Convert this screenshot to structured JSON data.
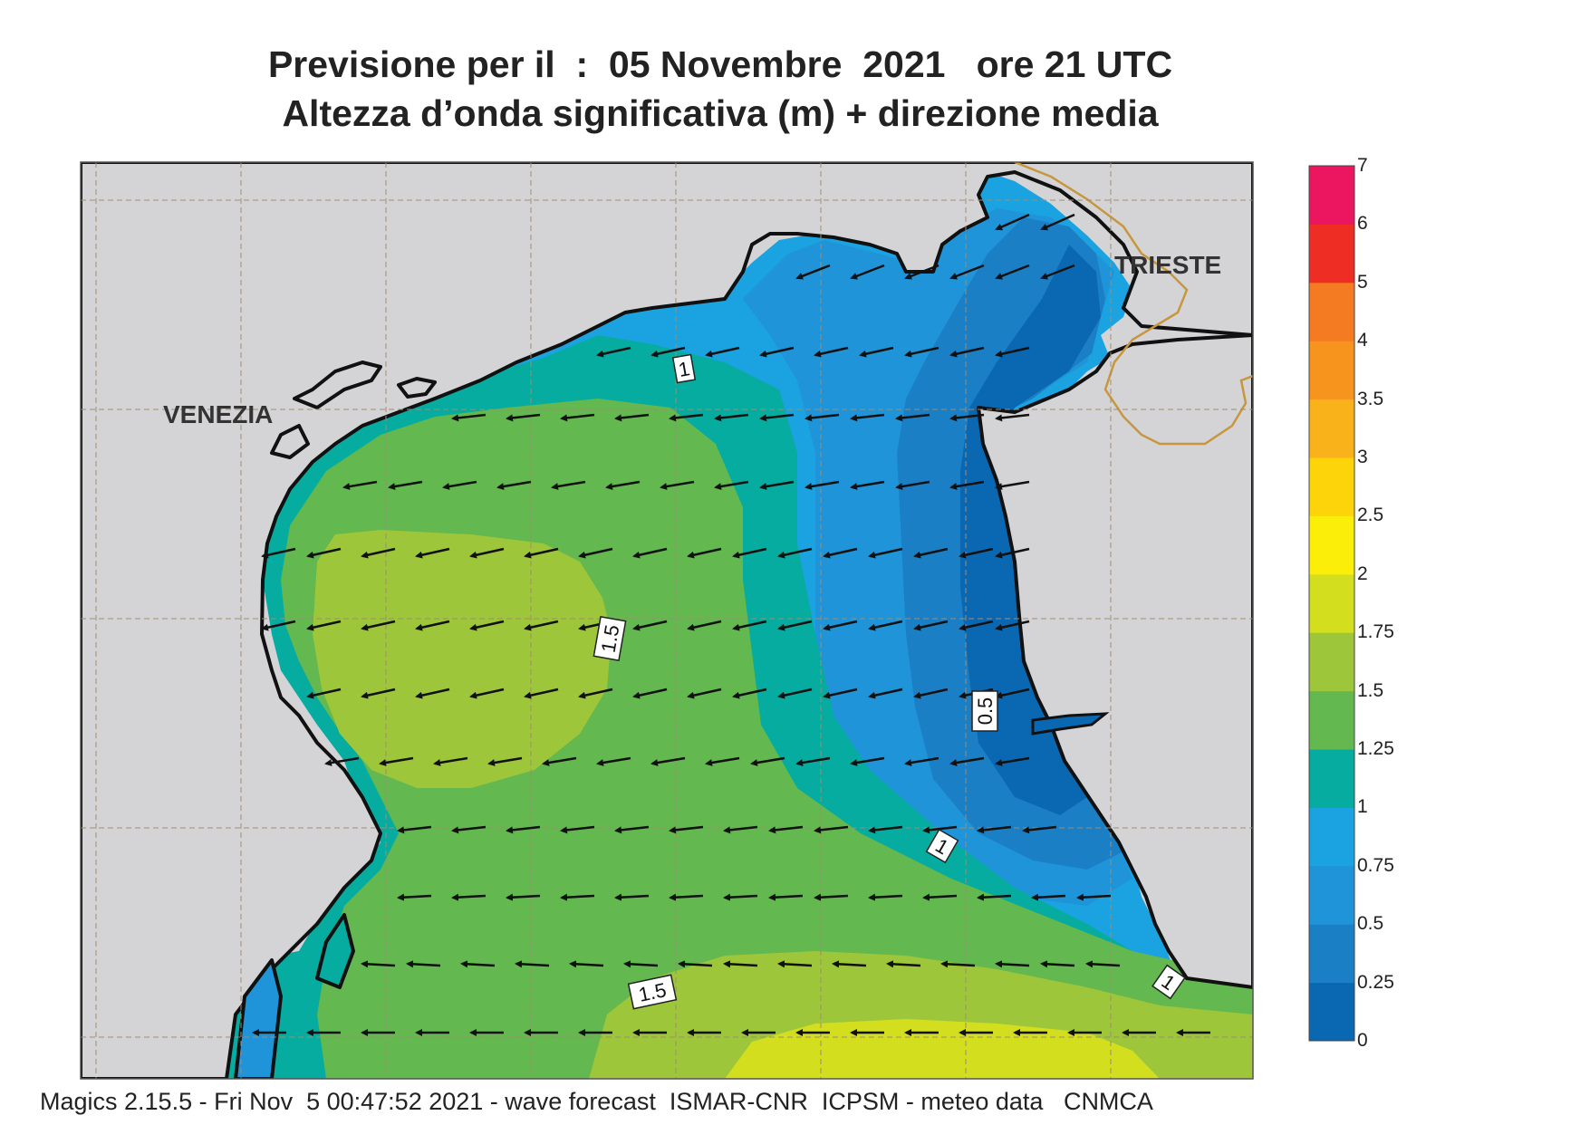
{
  "title": {
    "line1": "Previsione per il  :  05 Novembre  2021   ore 21 UTC",
    "line2": "Altezza d’onda significativa (m) + direzione media"
  },
  "footer": "Magics 2.15.5 - Fri Nov  5 00:47:52 2021 - wave forecast  ISMAR-CNR  ICPSM - meteo data   CNMCA",
  "cities": [
    {
      "name": "VENEZIA"
    },
    {
      "name": "TRIESTE"
    }
  ],
  "contour_labels": [
    "1",
    "1.5",
    "0.5",
    "1",
    "1.5",
    "1"
  ],
  "color_scale": {
    "levels": [
      "0",
      "0.25",
      "0.5",
      "0.75",
      "1",
      "1.25",
      "1.5",
      "1.75",
      "2",
      "2.5",
      "3",
      "3.5",
      "4",
      "5",
      "6",
      "7"
    ],
    "colors": [
      "#0a68b3",
      "#1b7fc6",
      "#1f94d8",
      "#1aa3e0",
      "#06ac9f",
      "#63b84f",
      "#9dc63a",
      "#d3de1f",
      "#fbef0a",
      "#fdd30a",
      "#fab21a",
      "#f7941d",
      "#f47b22",
      "#ee2e24",
      "#ec1660"
    ]
  },
  "colors": {
    "land": "#d4d4d6",
    "coastline": "#111111",
    "border": "#c8963c",
    "grid": "#a08c70"
  },
  "arrow_direction": "from east to west (waves heading west / south-west)"
}
